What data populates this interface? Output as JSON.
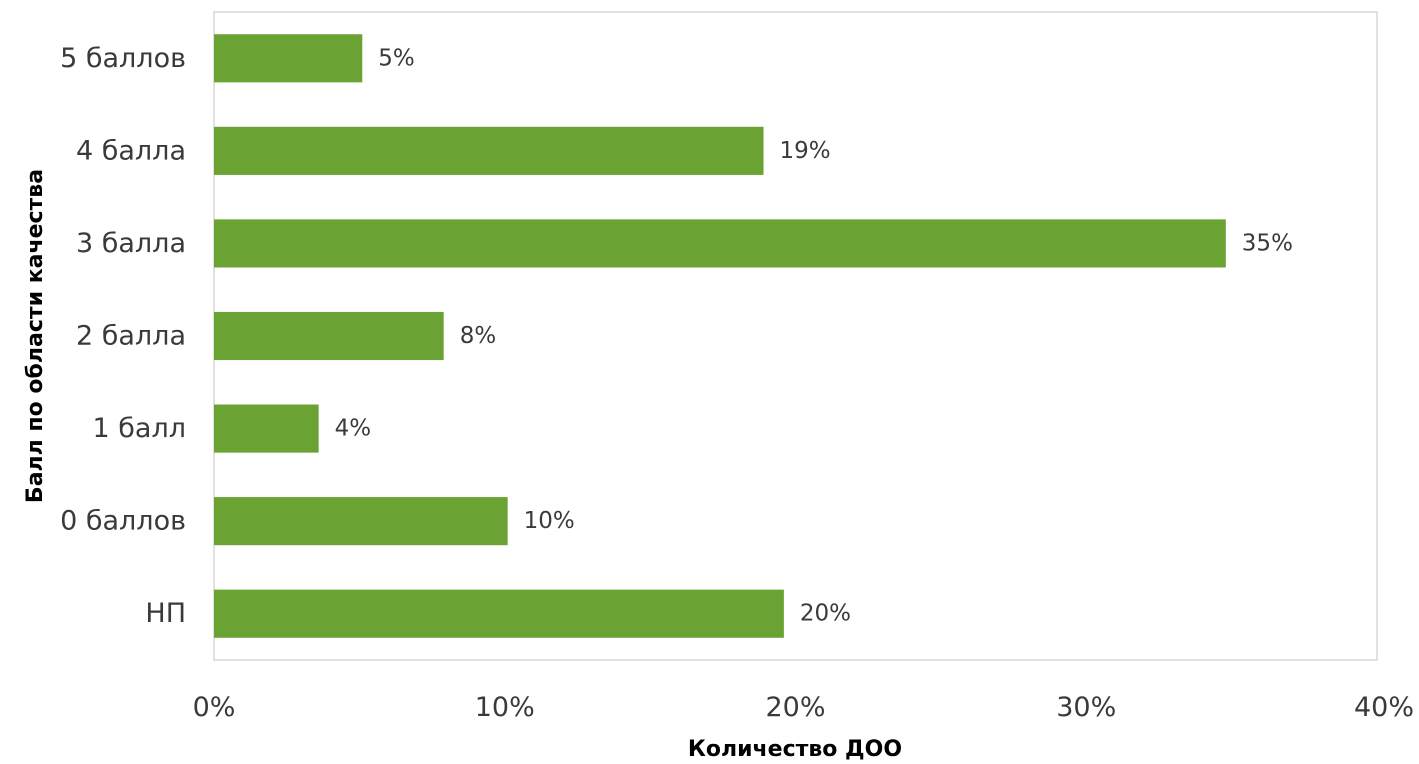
{
  "chart_data": {
    "type": "bar",
    "orientation": "horizontal",
    "categories": [
      "5 баллов",
      "4 балла",
      "3 балла",
      "2 балла",
      "1 балл",
      "0 баллов",
      "НП"
    ],
    "values": [
      5.1,
      18.9,
      34.8,
      7.9,
      3.6,
      10.1,
      19.6
    ],
    "data_labels": [
      "5%",
      "19%",
      "35%",
      "8%",
      "4%",
      "10%",
      "20%"
    ],
    "xlabel": "Количество ДОО",
    "ylabel": "Балл по области качества",
    "xlim": [
      0,
      40
    ],
    "x_ticks": [
      0,
      10,
      20,
      30,
      40
    ],
    "x_tick_labels": [
      "0%",
      "10%",
      "20%",
      "30%",
      "40%"
    ],
    "grid": false,
    "bar_color": "#6aa334",
    "plot_border_color": "#d9d9d9"
  }
}
